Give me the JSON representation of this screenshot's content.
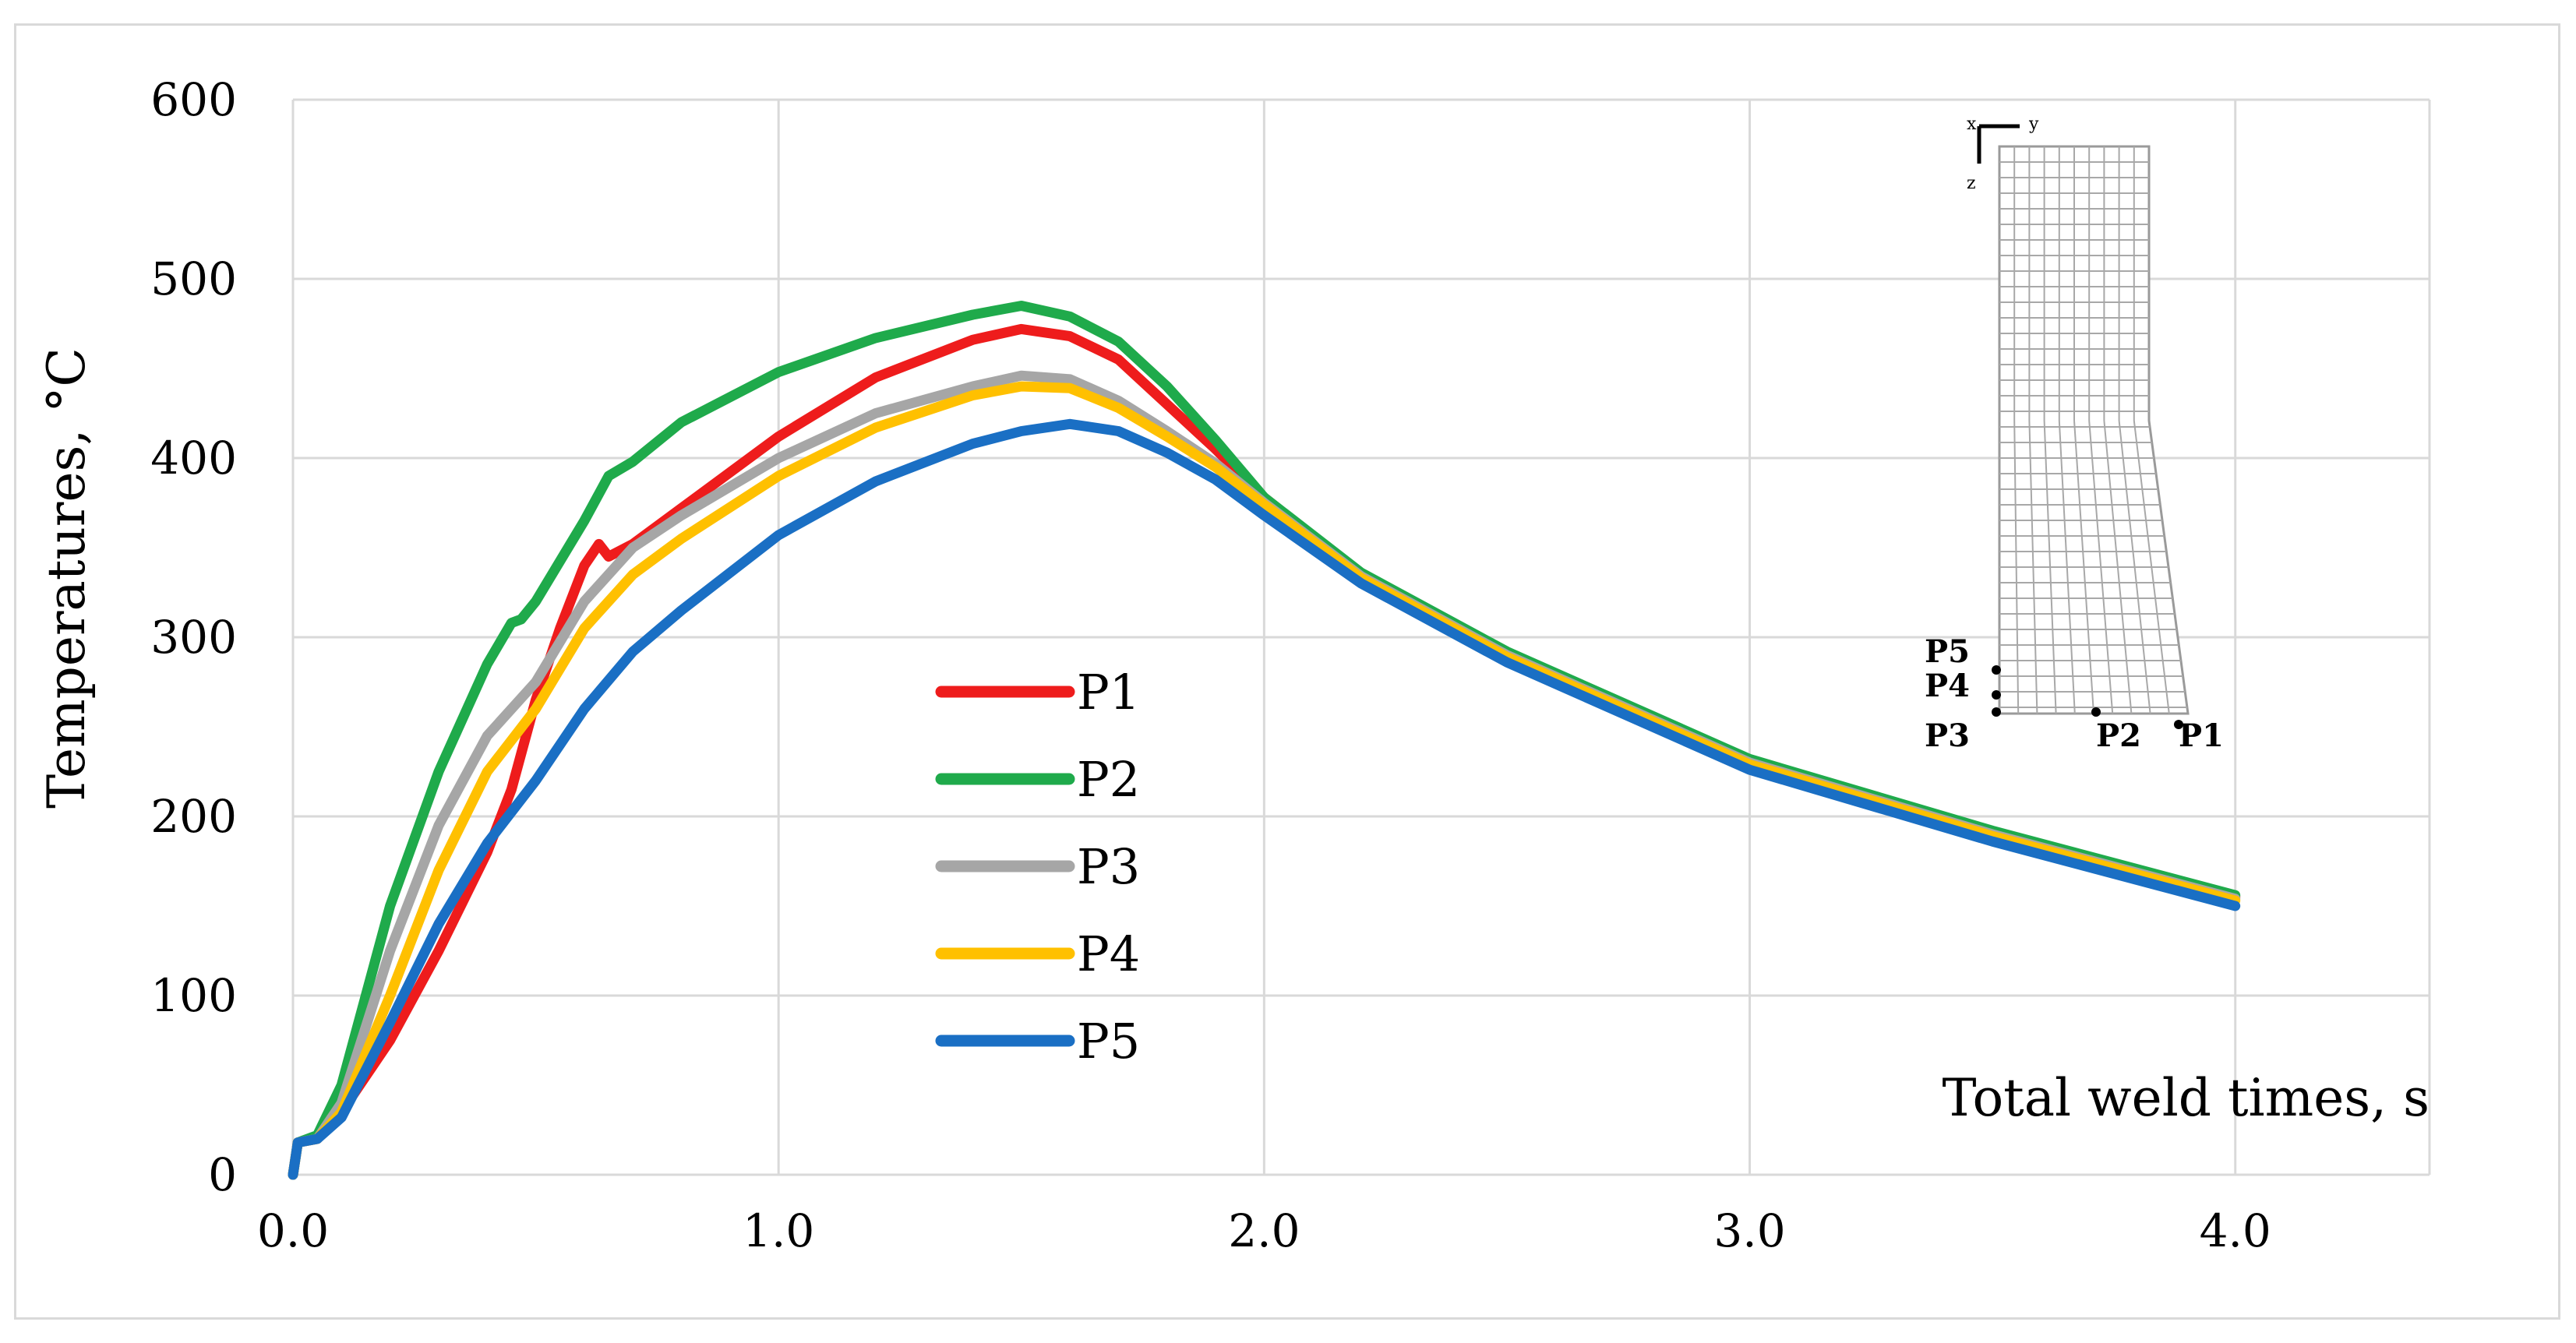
{
  "chart_data": {
    "type": "line",
    "title": "",
    "xlabel": "Total weld times, s",
    "ylabel": "Temperatures, °C",
    "xlim": [
      0,
      4.4
    ],
    "ylim": [
      0,
      600
    ],
    "x_ticks": [
      0,
      1,
      2,
      3,
      4
    ],
    "x_tick_labels": [
      "0.0",
      "1.0",
      "2.0",
      "3.0",
      "4.0"
    ],
    "y_ticks": [
      0,
      100,
      200,
      300,
      400,
      500,
      600
    ],
    "y_tick_labels": [
      "0",
      "100",
      "200",
      "300",
      "400",
      "500",
      "600"
    ],
    "grid": true,
    "legend_position": "center-left",
    "series": [
      {
        "name": "P1",
        "color": "#ee1c1c",
        "points": [
          [
            0,
            0
          ],
          [
            0.01,
            18
          ],
          [
            0.05,
            20
          ],
          [
            0.1,
            35
          ],
          [
            0.2,
            75
          ],
          [
            0.3,
            125
          ],
          [
            0.4,
            180
          ],
          [
            0.45,
            215
          ],
          [
            0.5,
            265
          ],
          [
            0.55,
            305
          ],
          [
            0.6,
            340
          ],
          [
            0.63,
            352
          ],
          [
            0.65,
            345
          ],
          [
            0.7,
            352
          ],
          [
            0.8,
            372
          ],
          [
            1.0,
            412
          ],
          [
            1.2,
            445
          ],
          [
            1.4,
            466
          ],
          [
            1.5,
            472
          ],
          [
            1.6,
            468
          ],
          [
            1.7,
            455
          ],
          [
            1.8,
            430
          ],
          [
            1.9,
            405
          ],
          [
            2.0,
            378
          ],
          [
            2.2,
            335
          ],
          [
            2.5,
            290
          ],
          [
            3.0,
            230
          ],
          [
            3.5,
            190
          ],
          [
            4.0,
            155
          ]
        ]
      },
      {
        "name": "P2",
        "color": "#1faa4b",
        "points": [
          [
            0,
            0
          ],
          [
            0.01,
            18
          ],
          [
            0.05,
            22
          ],
          [
            0.1,
            50
          ],
          [
            0.2,
            150
          ],
          [
            0.3,
            225
          ],
          [
            0.4,
            285
          ],
          [
            0.45,
            308
          ],
          [
            0.47,
            310
          ],
          [
            0.5,
            320
          ],
          [
            0.6,
            365
          ],
          [
            0.65,
            390
          ],
          [
            0.7,
            398
          ],
          [
            0.8,
            420
          ],
          [
            1.0,
            448
          ],
          [
            1.2,
            467
          ],
          [
            1.4,
            480
          ],
          [
            1.5,
            485
          ],
          [
            1.6,
            479
          ],
          [
            1.7,
            465
          ],
          [
            1.8,
            440
          ],
          [
            1.9,
            410
          ],
          [
            2.0,
            378
          ],
          [
            2.2,
            336
          ],
          [
            2.5,
            292
          ],
          [
            3.0,
            232
          ],
          [
            3.5,
            192
          ],
          [
            4.0,
            156
          ]
        ]
      },
      {
        "name": "P3",
        "color": "#a6a6a6",
        "points": [
          [
            0,
            0
          ],
          [
            0.01,
            18
          ],
          [
            0.05,
            20
          ],
          [
            0.1,
            40
          ],
          [
            0.2,
            125
          ],
          [
            0.3,
            195
          ],
          [
            0.4,
            245
          ],
          [
            0.5,
            275
          ],
          [
            0.6,
            320
          ],
          [
            0.7,
            350
          ],
          [
            0.8,
            368
          ],
          [
            1.0,
            400
          ],
          [
            1.2,
            425
          ],
          [
            1.4,
            440
          ],
          [
            1.5,
            446
          ],
          [
            1.6,
            444
          ],
          [
            1.7,
            432
          ],
          [
            1.8,
            415
          ],
          [
            1.9,
            397
          ],
          [
            2.0,
            375
          ],
          [
            2.2,
            334
          ],
          [
            2.5,
            290
          ],
          [
            3.0,
            230
          ],
          [
            3.5,
            190
          ],
          [
            4.0,
            154
          ]
        ]
      },
      {
        "name": "P4",
        "color": "#ffc000",
        "points": [
          [
            0,
            0
          ],
          [
            0.01,
            18
          ],
          [
            0.05,
            20
          ],
          [
            0.1,
            35
          ],
          [
            0.2,
            100
          ],
          [
            0.3,
            170
          ],
          [
            0.4,
            225
          ],
          [
            0.5,
            260
          ],
          [
            0.6,
            305
          ],
          [
            0.7,
            335
          ],
          [
            0.8,
            355
          ],
          [
            1.0,
            390
          ],
          [
            1.2,
            417
          ],
          [
            1.4,
            435
          ],
          [
            1.5,
            440
          ],
          [
            1.6,
            439
          ],
          [
            1.7,
            428
          ],
          [
            1.8,
            412
          ],
          [
            1.9,
            395
          ],
          [
            2.0,
            374
          ],
          [
            2.2,
            333
          ],
          [
            2.5,
            289
          ],
          [
            3.0,
            229
          ],
          [
            3.5,
            189
          ],
          [
            4.0,
            153
          ]
        ]
      },
      {
        "name": "P5",
        "color": "#1a6fc4",
        "points": [
          [
            0,
            0
          ],
          [
            0.01,
            18
          ],
          [
            0.05,
            20
          ],
          [
            0.1,
            32
          ],
          [
            0.2,
            85
          ],
          [
            0.3,
            140
          ],
          [
            0.4,
            185
          ],
          [
            0.5,
            220
          ],
          [
            0.6,
            260
          ],
          [
            0.7,
            292
          ],
          [
            0.8,
            315
          ],
          [
            1.0,
            357
          ],
          [
            1.2,
            387
          ],
          [
            1.4,
            408
          ],
          [
            1.5,
            415
          ],
          [
            1.6,
            419
          ],
          [
            1.7,
            415
          ],
          [
            1.8,
            403
          ],
          [
            1.9,
            388
          ],
          [
            2.0,
            368
          ],
          [
            2.2,
            330
          ],
          [
            2.5,
            286
          ],
          [
            3.0,
            226
          ],
          [
            3.5,
            186
          ],
          [
            4.0,
            150
          ]
        ]
      }
    ],
    "inset": {
      "axis_labels": [
        "x",
        "y",
        "z"
      ],
      "point_labels": [
        "P5",
        "P4",
        "P3",
        "P2",
        "P1"
      ]
    }
  }
}
